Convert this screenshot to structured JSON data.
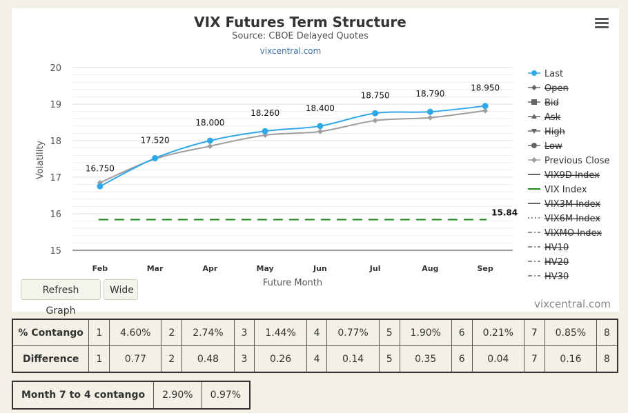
{
  "chart_data": {
    "type": "line",
    "title": "VIX Futures Term Structure",
    "subtitle": "Source: CBOE Delayed Quotes",
    "link_text": "vixcentral.com",
    "xlabel": "Future Month",
    "ylabel": "Volatility",
    "categories": [
      "Feb",
      "Mar",
      "Apr",
      "May",
      "Jun",
      "Jul",
      "Aug",
      "Sep"
    ],
    "ylim": [
      15,
      20
    ],
    "yticks": [
      "15",
      "16",
      "17",
      "18",
      "19",
      "20"
    ],
    "series": [
      {
        "name": "Last",
        "color": "#2fa8ea",
        "values": [
          16.75,
          17.52,
          18.0,
          18.26,
          18.4,
          18.75,
          18.79,
          18.95
        ],
        "labels": [
          "16.750",
          "17.520",
          "18.000",
          "18.260",
          "18.400",
          "18.750",
          "18.790",
          "18.950"
        ]
      },
      {
        "name": "Previous Close",
        "color": "#9e9e9e",
        "values": [
          16.85,
          17.5,
          17.85,
          18.15,
          18.25,
          18.55,
          18.63,
          18.82
        ]
      },
      {
        "name": "VIX Index",
        "color": "#1a8a1a",
        "values": [
          15.84,
          15.84,
          15.84,
          15.84,
          15.84,
          15.84,
          15.84,
          15.84
        ],
        "end_label": "15.84"
      }
    ],
    "legend": [
      {
        "label": "Last",
        "marker": "circle",
        "color": "#2fa8ea",
        "hidden": false
      },
      {
        "label": "Open",
        "marker": "diamond",
        "color": "#666666",
        "hidden": true
      },
      {
        "label": "Bid",
        "marker": "square",
        "color": "#666666",
        "hidden": true
      },
      {
        "label": "Ask",
        "marker": "triangle",
        "color": "#666666",
        "hidden": true
      },
      {
        "label": "High",
        "marker": "triangle-down",
        "color": "#666666",
        "hidden": true
      },
      {
        "label": "Low",
        "marker": "circle",
        "color": "#666666",
        "hidden": true
      },
      {
        "label": "Previous Close",
        "marker": "diamond",
        "color": "#9e9e9e",
        "hidden": false
      },
      {
        "label": "VIX9D Index",
        "marker": "line",
        "color": "#666666",
        "hidden": true
      },
      {
        "label": "VIX Index",
        "marker": "line",
        "color": "#1a8a1a",
        "hidden": false
      },
      {
        "label": "VIX3M Index",
        "marker": "line",
        "color": "#666666",
        "hidden": true
      },
      {
        "label": "VIX6M Index",
        "marker": "dotted",
        "color": "#666666",
        "hidden": true
      },
      {
        "label": "VIXMO Index",
        "marker": "dashdot",
        "color": "#666666",
        "hidden": true
      },
      {
        "label": "HV10",
        "marker": "dashdot",
        "color": "#666666",
        "hidden": true
      },
      {
        "label": "HV20",
        "marker": "dashdot",
        "color": "#666666",
        "hidden": true
      },
      {
        "label": "HV30",
        "marker": "dashdot",
        "color": "#666666",
        "hidden": true
      }
    ],
    "legend_placement": "right",
    "grid": true
  },
  "buttons": {
    "refresh": "Refresh Graph",
    "wide": "Wide"
  },
  "credit": "vixcentral.com",
  "contango_table": {
    "rows": [
      {
        "header": "% Contango",
        "cells": [
          "1",
          "4.60%",
          "2",
          "2.74%",
          "3",
          "1.44%",
          "4",
          "0.77%",
          "5",
          "1.90%",
          "6",
          "0.21%",
          "7",
          "0.85%",
          "8"
        ]
      },
      {
        "header": "Difference",
        "cells": [
          "1",
          "0.77",
          "2",
          "0.48",
          "3",
          "0.26",
          "4",
          "0.14",
          "5",
          "0.35",
          "6",
          "0.04",
          "7",
          "0.16",
          "8"
        ]
      }
    ]
  },
  "summary_table": {
    "header": "Month 7 to 4 contango",
    "values": [
      "2.90%",
      "0.97%"
    ]
  }
}
